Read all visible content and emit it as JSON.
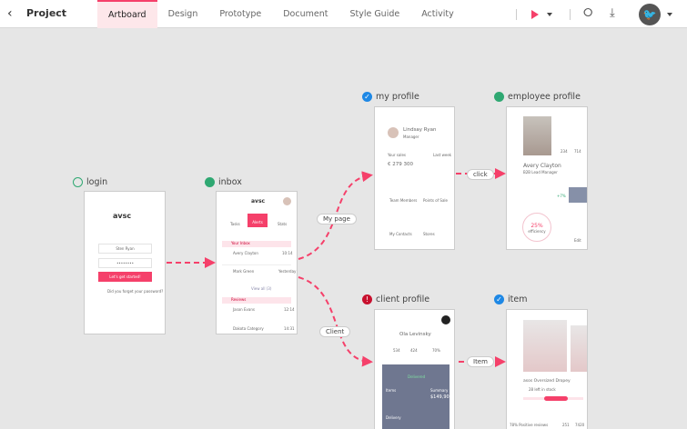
{
  "header": {
    "title": "Project",
    "tabs": [
      "Artboard",
      "Design",
      "Prototype",
      "Document",
      "Style Guide",
      "Activity"
    ],
    "active_tab": "Artboard",
    "accent": "#f5406a"
  },
  "screens": {
    "login": {
      "label": "login",
      "status": "in-progress",
      "logo": "avsc",
      "username": "Sten Ryan",
      "password": "••••••••",
      "button": "Let's get started!",
      "forgot": "Did you forget your password?"
    },
    "inbox": {
      "label": "inbox",
      "status": "in-progress",
      "logo": "avsc",
      "nav": [
        "Tasks",
        "Alerts",
        "Stats"
      ],
      "section1": "Your Inbox",
      "items": [
        {
          "name": "Avery Clayton",
          "time": "10:14"
        },
        {
          "name": "Mark Green",
          "time": "Yesterday"
        }
      ],
      "view_all": "View all (3)",
      "section2": "Reviews",
      "items2": [
        {
          "name": "Jason Evans",
          "time": "12:14"
        },
        {
          "name": "Dakota Category",
          "time": "14:31"
        }
      ]
    },
    "my_profile": {
      "label": "my profile",
      "status": "done",
      "name": "Lindsay Ryan",
      "role": "Manager",
      "sales_label": "Your sales",
      "period": "Last week",
      "amount": "€ 279 300",
      "tiles": [
        "Team Members",
        "Points of Sale",
        "My Contacts",
        "Stores"
      ]
    },
    "employee_profile": {
      "label": "employee profile",
      "status": "in-progress",
      "name": "Avery Clayton",
      "role": "B2B Lead Manager",
      "stats": [
        "234",
        "714"
      ],
      "percent": "+7%",
      "efficiency": "25%",
      "efficiency_label": "efficiency",
      "edit": "Edit"
    },
    "client_profile": {
      "label": "client profile",
      "status": "error",
      "name": "Ola Levinsky",
      "stats": [
        "534",
        "424",
        "70%"
      ],
      "status_text": "Delivered",
      "summary": "Summary",
      "total": "$149,90",
      "items_label": "Items",
      "delivery": "Delivery"
    },
    "item": {
      "label": "item",
      "status": "done",
      "title": "asos Oversized Dropey",
      "stock": "28 left in stock",
      "likes": "78% Positive reviews",
      "counts": [
        "251",
        "7420"
      ]
    }
  },
  "links": {
    "login_inbox": "",
    "inbox_my_profile": "My page",
    "inbox_client_profile": "Client",
    "my_profile_employee": "click",
    "client_item": "Item"
  }
}
